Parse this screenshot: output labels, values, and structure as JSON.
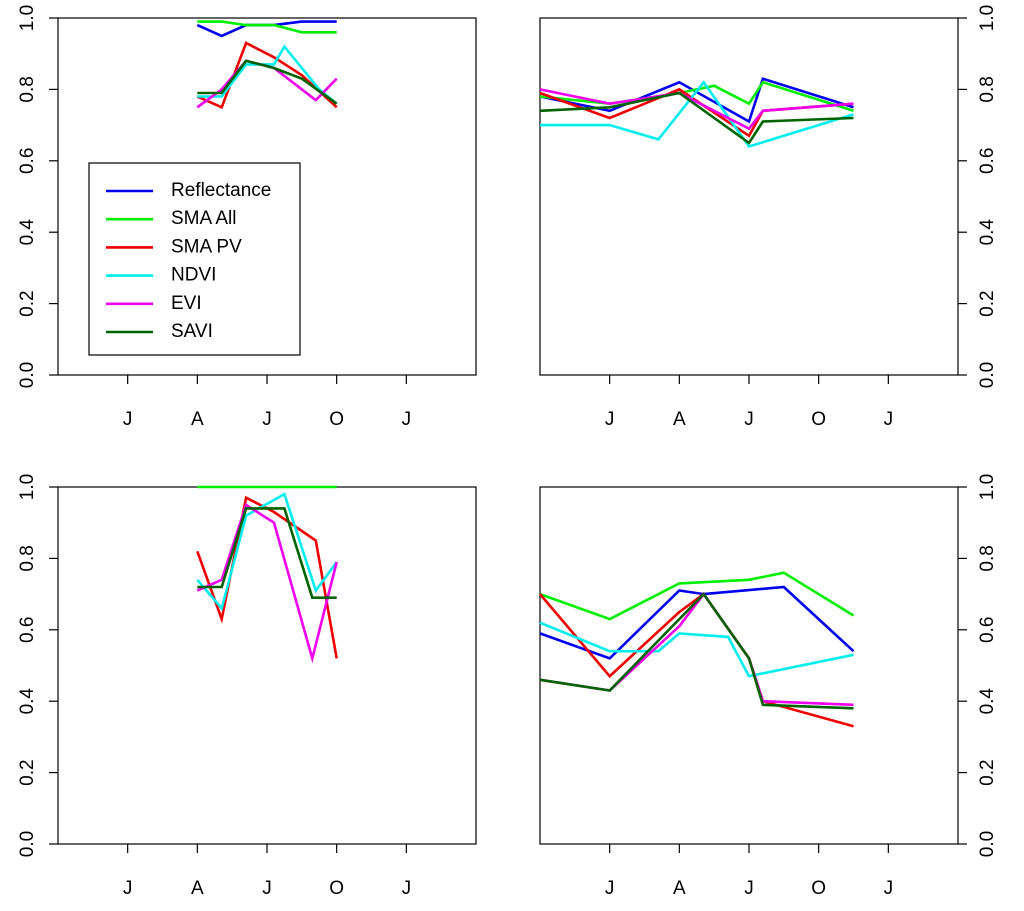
{
  "chart_data": [
    {
      "type": "line",
      "x_tick_labels": [
        "J",
        "A",
        "J",
        "O",
        "J"
      ],
      "x_domain": [
        0,
        6
      ],
      "ylim": [
        0,
        1
      ],
      "y_tick_labels": [
        "0.0",
        "0.2",
        "0.4",
        "0.6",
        "0.8",
        "1.0"
      ],
      "y_axis_side": "left",
      "legend_placement": "left",
      "series": [
        {
          "name": "Reflectance",
          "color": "#0000ee",
          "points": [
            [
              2.0,
              0.98
            ],
            [
              2.35,
              0.95
            ],
            [
              2.7,
              0.98
            ],
            [
              3.1,
              0.98
            ],
            [
              3.5,
              0.99
            ],
            [
              4.0,
              0.99
            ]
          ]
        },
        {
          "name": "SMA All",
          "color": "#00ee00",
          "points": [
            [
              2.0,
              0.99
            ],
            [
              2.35,
              0.99
            ],
            [
              2.7,
              0.98
            ],
            [
              3.1,
              0.98
            ],
            [
              3.5,
              0.96
            ],
            [
              4.0,
              0.96
            ]
          ]
        },
        {
          "name": "SMA PV",
          "color": "#ee0000",
          "points": [
            [
              2.0,
              0.78
            ],
            [
              2.35,
              0.75
            ],
            [
              2.7,
              0.93
            ],
            [
              3.1,
              0.89
            ],
            [
              3.5,
              0.84
            ],
            [
              4.0,
              0.75
            ]
          ]
        },
        {
          "name": "NDVI",
          "color": "#00eeee",
          "points": [
            [
              2.0,
              0.78
            ],
            [
              2.35,
              0.78
            ],
            [
              2.7,
              0.87
            ],
            [
              3.1,
              0.87
            ],
            [
              3.25,
              0.92
            ],
            [
              3.75,
              0.8
            ],
            [
              4.0,
              0.76
            ]
          ]
        },
        {
          "name": "EVI",
          "color": "#ee00ee",
          "points": [
            [
              2.0,
              0.75
            ],
            [
              2.35,
              0.8
            ],
            [
              2.7,
              0.88
            ],
            [
              3.1,
              0.86
            ],
            [
              3.7,
              0.77
            ],
            [
              4.0,
              0.83
            ]
          ]
        },
        {
          "name": "SAVI",
          "color": "#006400",
          "points": [
            [
              2.0,
              0.79
            ],
            [
              2.35,
              0.79
            ],
            [
              2.7,
              0.88
            ],
            [
              3.1,
              0.86
            ],
            [
              3.5,
              0.83
            ],
            [
              4.0,
              0.76
            ]
          ]
        }
      ]
    },
    {
      "type": "line",
      "x_tick_labels": [
        "J",
        "A",
        "J",
        "O",
        "J"
      ],
      "x_domain": [
        0,
        6
      ],
      "ylim": [
        0,
        1
      ],
      "y_tick_labels": [
        "0.0",
        "0.2",
        "0.4",
        "0.6",
        "0.8",
        "1.0"
      ],
      "y_axis_side": "right",
      "series": [
        {
          "color": "#0000ee",
          "points": [
            [
              0.0,
              0.78
            ],
            [
              1.0,
              0.74
            ],
            [
              2.0,
              0.82
            ],
            [
              3.0,
              0.71
            ],
            [
              3.2,
              0.83
            ],
            [
              4.5,
              0.75
            ]
          ]
        },
        {
          "color": "#00ee00",
          "points": [
            [
              0.0,
              0.78
            ],
            [
              1.0,
              0.76
            ],
            [
              2.0,
              0.79
            ],
            [
              2.5,
              0.81
            ],
            [
              3.0,
              0.76
            ],
            [
              3.2,
              0.82
            ],
            [
              4.5,
              0.74
            ]
          ]
        },
        {
          "color": "#ee0000",
          "points": [
            [
              0.0,
              0.79
            ],
            [
              1.0,
              0.72
            ],
            [
              2.0,
              0.8
            ],
            [
              3.0,
              0.67
            ],
            [
              3.2,
              0.74
            ],
            [
              4.5,
              0.76
            ]
          ]
        },
        {
          "color": "#00eeee",
          "points": [
            [
              0.0,
              0.7
            ],
            [
              1.0,
              0.7
            ],
            [
              1.7,
              0.66
            ],
            [
              2.35,
              0.82
            ],
            [
              3.0,
              0.64
            ],
            [
              3.5,
              0.67
            ],
            [
              4.5,
              0.73
            ]
          ]
        },
        {
          "color": "#ee00ee",
          "points": [
            [
              0.0,
              0.8
            ],
            [
              1.0,
              0.76
            ],
            [
              2.0,
              0.79
            ],
            [
              3.0,
              0.69
            ],
            [
              3.2,
              0.74
            ],
            [
              4.5,
              0.76
            ]
          ]
        },
        {
          "color": "#006400",
          "points": [
            [
              0.0,
              0.74
            ],
            [
              1.0,
              0.75
            ],
            [
              2.0,
              0.79
            ],
            [
              3.0,
              0.65
            ],
            [
              3.2,
              0.71
            ],
            [
              4.5,
              0.72
            ]
          ]
        }
      ]
    },
    {
      "type": "line",
      "x_tick_labels": [
        "J",
        "A",
        "J",
        "O",
        "J"
      ],
      "x_domain": [
        0,
        6
      ],
      "ylim": [
        0,
        1
      ],
      "y_tick_labels": [
        "0.0",
        "0.2",
        "0.4",
        "0.6",
        "0.8",
        "1.0"
      ],
      "y_axis_side": "left",
      "series": [
        {
          "color": "#00ee00",
          "points": [
            [
              2.0,
              1.0
            ],
            [
              4.0,
              1.0
            ]
          ]
        },
        {
          "color": "#ee0000",
          "points": [
            [
              2.0,
              0.82
            ],
            [
              2.35,
              0.63
            ],
            [
              2.7,
              0.97
            ],
            [
              3.1,
              0.93
            ],
            [
              3.7,
              0.85
            ],
            [
              4.0,
              0.52
            ]
          ]
        },
        {
          "color": "#00eeee",
          "points": [
            [
              2.0,
              0.74
            ],
            [
              2.35,
              0.66
            ],
            [
              2.7,
              0.92
            ],
            [
              3.25,
              0.98
            ],
            [
              3.7,
              0.71
            ],
            [
              4.0,
              0.79
            ]
          ]
        },
        {
          "color": "#ee00ee",
          "points": [
            [
              2.0,
              0.71
            ],
            [
              2.35,
              0.74
            ],
            [
              2.7,
              0.95
            ],
            [
              3.1,
              0.9
            ],
            [
              3.65,
              0.52
            ],
            [
              4.0,
              0.79
            ]
          ]
        },
        {
          "color": "#006400",
          "points": [
            [
              2.0,
              0.72
            ],
            [
              2.35,
              0.72
            ],
            [
              2.7,
              0.94
            ],
            [
              3.25,
              0.94
            ],
            [
              3.65,
              0.69
            ],
            [
              4.0,
              0.69
            ]
          ]
        }
      ]
    },
    {
      "type": "line",
      "x_tick_labels": [
        "J",
        "A",
        "J",
        "O",
        "J"
      ],
      "x_domain": [
        0,
        6
      ],
      "ylim": [
        0,
        1
      ],
      "y_tick_labels": [
        "0.0",
        "0.2",
        "0.4",
        "0.6",
        "0.8",
        "1.0"
      ],
      "y_axis_side": "right",
      "series": [
        {
          "color": "#0000ee",
          "points": [
            [
              0.0,
              0.59
            ],
            [
              1.0,
              0.52
            ],
            [
              2.0,
              0.71
            ],
            [
              2.35,
              0.7
            ],
            [
              3.5,
              0.72
            ],
            [
              4.5,
              0.54
            ]
          ]
        },
        {
          "color": "#00ee00",
          "points": [
            [
              0.0,
              0.7
            ],
            [
              1.0,
              0.63
            ],
            [
              2.0,
              0.73
            ],
            [
              3.0,
              0.74
            ],
            [
              3.5,
              0.76
            ],
            [
              4.5,
              0.64
            ]
          ]
        },
        {
          "color": "#ee0000",
          "points": [
            [
              0.0,
              0.7
            ],
            [
              1.0,
              0.47
            ],
            [
              2.0,
              0.65
            ],
            [
              2.35,
              0.7
            ],
            [
              3.0,
              0.52
            ],
            [
              3.2,
              0.4
            ],
            [
              4.5,
              0.33
            ]
          ]
        },
        {
          "color": "#00eeee",
          "points": [
            [
              0.0,
              0.62
            ],
            [
              1.0,
              0.54
            ],
            [
              1.7,
              0.54
            ],
            [
              2.0,
              0.59
            ],
            [
              2.7,
              0.58
            ],
            [
              3.0,
              0.47
            ],
            [
              4.5,
              0.53
            ]
          ]
        },
        {
          "color": "#ee00ee",
          "points": [
            [
              0.0,
              0.46
            ],
            [
              1.0,
              0.43
            ],
            [
              2.0,
              0.61
            ],
            [
              2.35,
              0.7
            ],
            [
              3.0,
              0.52
            ],
            [
              3.2,
              0.4
            ],
            [
              4.5,
              0.39
            ]
          ]
        },
        {
          "color": "#006400",
          "points": [
            [
              0.0,
              0.46
            ],
            [
              1.0,
              0.43
            ],
            [
              2.0,
              0.63
            ],
            [
              2.35,
              0.7
            ],
            [
              3.0,
              0.52
            ],
            [
              3.2,
              0.39
            ],
            [
              4.5,
              0.38
            ]
          ]
        }
      ]
    }
  ]
}
